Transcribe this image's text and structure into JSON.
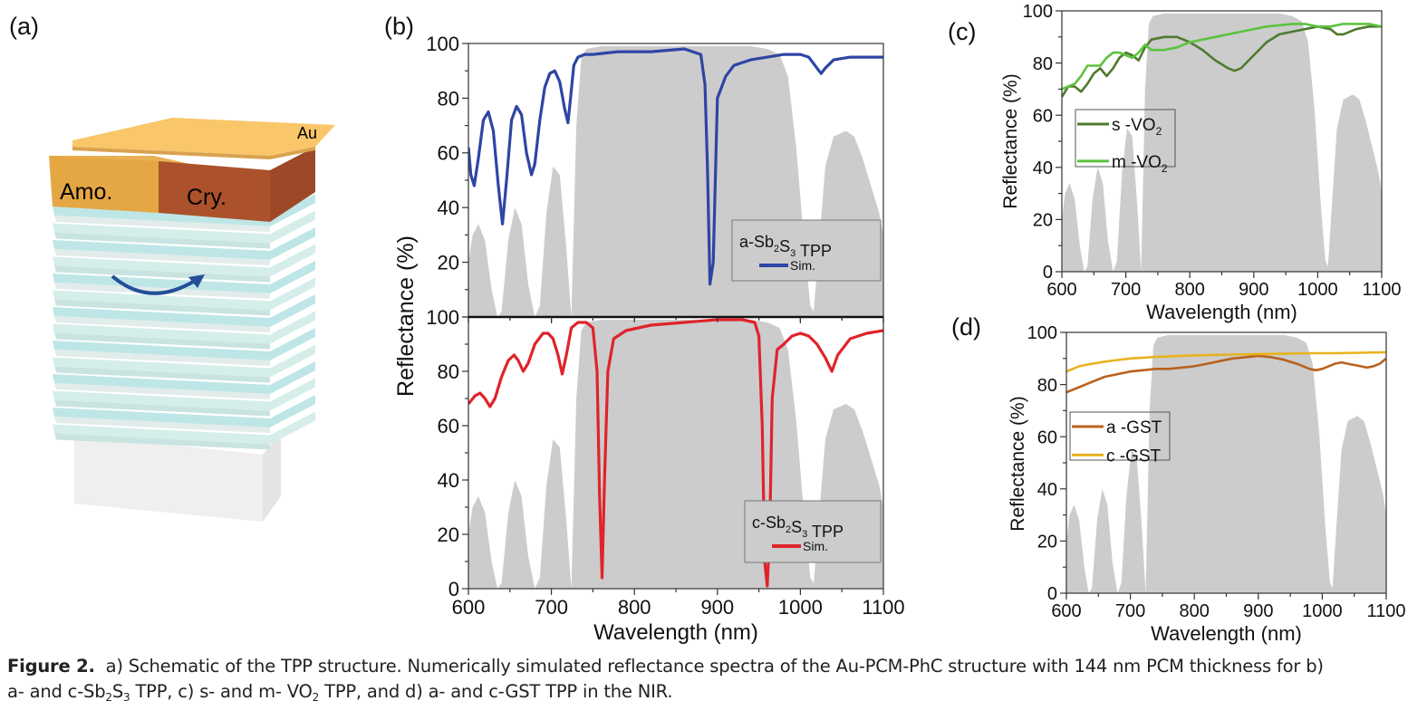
{
  "panels": {
    "a": {
      "label": "(a)",
      "layers": {
        "top": "Au",
        "left": "Amo.",
        "right": "Cry."
      },
      "colors": {
        "au": "#f7c468",
        "amo": "#e2a444",
        "cry": "#a8502c",
        "phc": "#bfe6e6",
        "substrate": "#eeeeee",
        "arrow": "#234f9a"
      }
    },
    "b": {
      "label": "(b)"
    },
    "c": {
      "label": "(c)"
    },
    "d": {
      "label": "(d)"
    }
  },
  "caption": {
    "title": "Figure 2.",
    "line1": "a) Schematic of the TPP structure. Numerically simulated reflectance spectra of the Au-PCM-PhC structure with 144 nm PCM thickness for b)",
    "line2_a": "a- and c-Sb",
    "line2_sub1": "2",
    "line2_b": "S",
    "line2_sub2": "3",
    "line2_c": " TPP, c) s- and m- VO",
    "line2_sub3": "2",
    "line2_d": " TPP, and d) a- and c-GST TPP in the NIR."
  },
  "chart_data": [
    {
      "id": "b-top",
      "type": "line",
      "xlabel": "Wavelength (nm)",
      "ylabel": "Reflectance (%)",
      "xlim": [
        600,
        1100
      ],
      "ylim": [
        0,
        100
      ],
      "xticks": [
        "600",
        "700",
        "800",
        "900",
        "1000",
        "1100"
      ],
      "yticks": [
        "20",
        "40",
        "60",
        "80",
        "100"
      ],
      "legend": {
        "title_a": "a-Sb",
        "sub1": "2",
        "title_b": "S",
        "sub2": "3",
        "title_c": " TPP",
        "position": "bottom-right"
      },
      "background_band": {
        "color": "#cccccc",
        "x": [
          600,
          605,
          612,
          620,
          628,
          635,
          640,
          648,
          656,
          664,
          672,
          680,
          686,
          694,
          702,
          710,
          718,
          724,
          730,
          736,
          742,
          760,
          800,
          850,
          900,
          940,
          960,
          975,
          985,
          995,
          1005,
          1012,
          1016,
          1022,
          1030,
          1040,
          1055,
          1065,
          1075,
          1085,
          1095,
          1100
        ],
        "y": [
          20,
          30,
          34,
          28,
          10,
          0,
          2,
          28,
          40,
          34,
          12,
          0,
          4,
          38,
          55,
          52,
          25,
          0,
          70,
          95,
          98,
          99,
          99,
          99,
          99,
          99,
          98,
          96,
          88,
          62,
          25,
          4,
          2,
          25,
          55,
          66,
          68,
          66,
          58,
          48,
          38,
          30
        ]
      },
      "series": [
        {
          "name": "Sim.",
          "color": "#2e45a4",
          "x": [
            600,
            603,
            607,
            612,
            618,
            624,
            630,
            636,
            641,
            646,
            652,
            658,
            664,
            670,
            676,
            680,
            686,
            692,
            698,
            704,
            710,
            716,
            720,
            723,
            727,
            732,
            740,
            750,
            780,
            820,
            860,
            880,
            885,
            888,
            891,
            895,
            900,
            910,
            920,
            930,
            940,
            960,
            980,
            1000,
            1010,
            1020,
            1025,
            1030,
            1040,
            1060,
            1080,
            1100
          ],
          "y": [
            62,
            52,
            48,
            58,
            72,
            75,
            68,
            48,
            34,
            50,
            72,
            77,
            74,
            60,
            52,
            56,
            72,
            84,
            89,
            90,
            86,
            76,
            71,
            80,
            92,
            95,
            96,
            96,
            97,
            97,
            98,
            96,
            85,
            55,
            12,
            20,
            80,
            88,
            92,
            93,
            94,
            95,
            96,
            96,
            95,
            91,
            89,
            91,
            94,
            95,
            95,
            95
          ]
        }
      ]
    },
    {
      "id": "b-bottom",
      "type": "line",
      "xlabel": "Wavelength (nm)",
      "ylabel": "Reflectance (%)",
      "xlim": [
        600,
        1100
      ],
      "ylim": [
        0,
        100
      ],
      "xticks": [
        "600",
        "700",
        "800",
        "900",
        "1000",
        "1100"
      ],
      "yticks": [
        "0",
        "20",
        "40",
        "60",
        "80",
        "100"
      ],
      "legend": {
        "title_a": "c-Sb",
        "sub1": "2",
        "title_b": "S",
        "sub2": "3",
        "title_c": " TPP",
        "position": "bottom-right"
      },
      "background_band": {
        "color": "#cccccc",
        "x": [
          600,
          605,
          612,
          620,
          628,
          635,
          640,
          648,
          656,
          664,
          672,
          680,
          686,
          694,
          702,
          710,
          718,
          724,
          730,
          736,
          742,
          760,
          800,
          850,
          900,
          940,
          960,
          975,
          985,
          995,
          1005,
          1012,
          1016,
          1022,
          1030,
          1040,
          1055,
          1065,
          1075,
          1085,
          1095,
          1100
        ],
        "y": [
          20,
          30,
          34,
          28,
          10,
          0,
          2,
          28,
          40,
          34,
          12,
          0,
          4,
          38,
          55,
          52,
          25,
          0,
          70,
          95,
          98,
          99,
          99,
          99,
          99,
          99,
          98,
          96,
          88,
          62,
          25,
          4,
          2,
          25,
          55,
          66,
          68,
          66,
          58,
          48,
          38,
          30
        ]
      },
      "series": [
        {
          "name": "Sim.",
          "color": "#e0232b",
          "x": [
            600,
            608,
            614,
            620,
            626,
            632,
            640,
            648,
            655,
            660,
            666,
            672,
            680,
            690,
            696,
            702,
            708,
            713,
            718,
            724,
            732,
            742,
            750,
            755,
            758,
            761,
            764,
            768,
            775,
            790,
            820,
            860,
            900,
            930,
            945,
            950,
            954,
            957,
            960,
            963,
            966,
            972,
            980,
            990,
            1000,
            1010,
            1020,
            1030,
            1038,
            1045,
            1060,
            1080,
            1100
          ],
          "y": [
            68,
            71,
            72,
            70,
            67,
            70,
            78,
            84,
            86,
            84,
            80,
            83,
            90,
            94,
            94,
            92,
            86,
            79,
            86,
            96,
            98,
            98,
            96,
            80,
            35,
            4,
            40,
            80,
            92,
            95,
            97,
            98,
            99,
            99,
            98,
            93,
            60,
            10,
            1,
            20,
            70,
            88,
            90,
            93,
            94,
            93,
            90,
            85,
            80,
            86,
            92,
            94,
            95
          ]
        }
      ]
    },
    {
      "id": "c",
      "type": "line",
      "xlabel": "Wavelength (nm)",
      "ylabel": "Reflectance (%)",
      "xlim": [
        600,
        1100
      ],
      "ylim": [
        0,
        100
      ],
      "xticks": [
        "600",
        "700",
        "800",
        "900",
        "1000",
        "1100"
      ],
      "yticks": [
        "0",
        "20",
        "40",
        "60",
        "80",
        "100"
      ],
      "legend": {
        "position": "center-left"
      },
      "background_band": {
        "color": "#cccccc",
        "x": [
          600,
          605,
          612,
          620,
          628,
          635,
          640,
          648,
          656,
          664,
          672,
          680,
          686,
          694,
          702,
          710,
          718,
          724,
          730,
          736,
          742,
          760,
          800,
          850,
          900,
          940,
          960,
          975,
          985,
          995,
          1005,
          1012,
          1016,
          1022,
          1030,
          1040,
          1055,
          1065,
          1075,
          1085,
          1095,
          1100
        ],
        "y": [
          20,
          30,
          34,
          28,
          10,
          0,
          2,
          28,
          40,
          34,
          12,
          0,
          4,
          38,
          55,
          52,
          25,
          0,
          70,
          95,
          98,
          99,
          99,
          99,
          99,
          99,
          98,
          96,
          88,
          62,
          25,
          4,
          2,
          25,
          55,
          66,
          68,
          66,
          58,
          48,
          38,
          30
        ]
      },
      "series": [
        {
          "name": "s -VO",
          "sub": "2",
          "color": "#4f7a2e",
          "x": [
            600,
            610,
            620,
            630,
            640,
            650,
            660,
            670,
            680,
            690,
            700,
            710,
            720,
            730,
            740,
            760,
            780,
            800,
            820,
            840,
            860,
            870,
            880,
            900,
            920,
            940,
            960,
            980,
            1000,
            1020,
            1030,
            1040,
            1060,
            1080,
            1100
          ],
          "y": [
            67,
            71,
            71,
            69,
            72,
            76,
            78,
            75,
            78,
            82,
            84,
            83,
            81,
            86,
            89,
            90,
            90,
            88,
            85,
            81,
            78,
            77,
            78,
            83,
            88,
            91,
            92,
            93,
            94,
            93,
            91,
            91,
            93,
            94,
            94
          ]
        },
        {
          "name": "m -VO",
          "sub": "2",
          "color": "#5cc23e",
          "x": [
            600,
            610,
            620,
            630,
            640,
            650,
            660,
            670,
            680,
            690,
            700,
            710,
            720,
            730,
            740,
            760,
            780,
            800,
            840,
            880,
            920,
            960,
            980,
            1000,
            1020,
            1040,
            1060,
            1080,
            1100
          ],
          "y": [
            70,
            71,
            72,
            75,
            79,
            79,
            79,
            82,
            84,
            84,
            83,
            82,
            84,
            87,
            85,
            85,
            86,
            88,
            90,
            92,
            94,
            95,
            95,
            94,
            94,
            95,
            95,
            95,
            94
          ]
        }
      ]
    },
    {
      "id": "d",
      "type": "line",
      "xlabel": "Wavelength (nm)",
      "ylabel": "Reflectance (%)",
      "xlim": [
        600,
        1100
      ],
      "ylim": [
        0,
        100
      ],
      "xticks": [
        "600",
        "700",
        "800",
        "900",
        "1000",
        "1100"
      ],
      "yticks": [
        "0",
        "20",
        "40",
        "60",
        "80",
        "100"
      ],
      "legend": {
        "position": "center-left"
      },
      "background_band": {
        "color": "#cccccc",
        "x": [
          600,
          605,
          612,
          620,
          628,
          635,
          640,
          648,
          656,
          664,
          672,
          680,
          686,
          694,
          702,
          710,
          718,
          724,
          730,
          736,
          742,
          760,
          800,
          850,
          900,
          940,
          960,
          975,
          985,
          995,
          1005,
          1012,
          1016,
          1022,
          1030,
          1040,
          1055,
          1065,
          1075,
          1085,
          1095,
          1100
        ],
        "y": [
          20,
          30,
          34,
          28,
          10,
          0,
          2,
          28,
          40,
          34,
          12,
          0,
          4,
          38,
          55,
          52,
          25,
          0,
          70,
          95,
          98,
          99,
          99,
          99,
          99,
          99,
          98,
          96,
          88,
          62,
          25,
          4,
          2,
          25,
          55,
          66,
          68,
          66,
          58,
          48,
          38,
          30
        ]
      },
      "series": [
        {
          "name": "a -GST",
          "color": "#b8621e",
          "x": [
            600,
            620,
            640,
            660,
            680,
            700,
            720,
            740,
            760,
            780,
            800,
            820,
            840,
            860,
            880,
            900,
            920,
            940,
            960,
            980,
            990,
            1000,
            1010,
            1020,
            1030,
            1040,
            1050,
            1060,
            1070,
            1080,
            1090,
            1100
          ],
          "y": [
            77,
            79,
            81,
            83,
            84,
            85,
            85.5,
            86,
            86,
            86.5,
            87,
            88,
            89,
            90,
            90.5,
            91,
            90.5,
            89.5,
            88,
            86,
            85.5,
            86,
            87,
            88,
            88.5,
            88,
            87.5,
            87,
            86.5,
            87,
            88,
            90
          ]
        },
        {
          "name": "c -GST",
          "color": "#e8b21e",
          "x": [
            600,
            620,
            640,
            660,
            680,
            700,
            740,
            780,
            820,
            860,
            900,
            940,
            980,
            1020,
            1060,
            1100
          ],
          "y": [
            85,
            87,
            88,
            88.8,
            89.4,
            90,
            90.6,
            91,
            91.3,
            91.5,
            91.7,
            91.8,
            92,
            92,
            92.2,
            92.4
          ]
        }
      ]
    }
  ]
}
